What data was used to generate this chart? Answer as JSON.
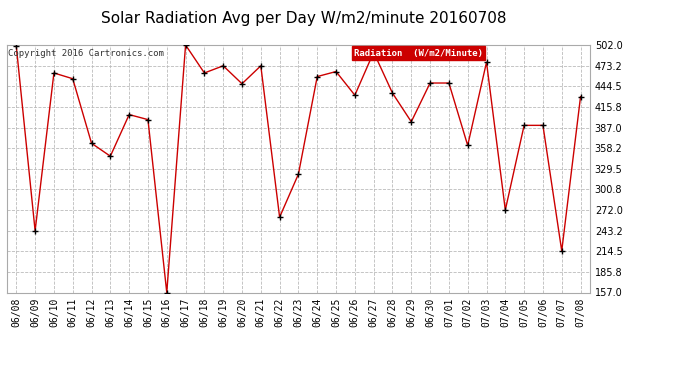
{
  "title": "Solar Radiation Avg per Day W/m2/minute 20160708",
  "copyright": "Copyright 2016 Cartronics.com",
  "legend_label": "Radiation  (W/m2/Minute)",
  "dates": [
    "06/08",
    "06/09",
    "06/10",
    "06/11",
    "06/12",
    "06/13",
    "06/14",
    "06/15",
    "06/16",
    "06/17",
    "06/18",
    "06/19",
    "06/20",
    "06/21",
    "06/22",
    "06/23",
    "06/24",
    "06/25",
    "06/26",
    "06/27",
    "06/28",
    "06/29",
    "06/30",
    "07/01",
    "07/02",
    "07/03",
    "07/04",
    "07/05",
    "07/06",
    "07/07",
    "07/08"
  ],
  "values": [
    500.0,
    243.0,
    463.0,
    455.0,
    365.0,
    347.0,
    405.0,
    398.0,
    157.0,
    502.0,
    463.0,
    473.0,
    448.0,
    473.0,
    262.0,
    322.0,
    458.0,
    465.0,
    432.0,
    492.0,
    435.0,
    395.0,
    449.0,
    449.0,
    362.0,
    478.0,
    272.0,
    390.0,
    390.0,
    215.0,
    430.0
  ],
  "ylim": [
    157.0,
    502.0
  ],
  "yticks": [
    157.0,
    185.8,
    214.5,
    243.2,
    272.0,
    300.8,
    329.5,
    358.2,
    387.0,
    415.8,
    444.5,
    473.2,
    502.0
  ],
  "line_color": "#cc0000",
  "marker_color": "#000000",
  "bg_color": "#ffffff",
  "plot_bg_color": "#ffffff",
  "grid_color": "#bbbbbb",
  "title_fontsize": 11,
  "tick_fontsize": 7,
  "legend_bg": "#cc0000",
  "legend_text_color": "#ffffff"
}
